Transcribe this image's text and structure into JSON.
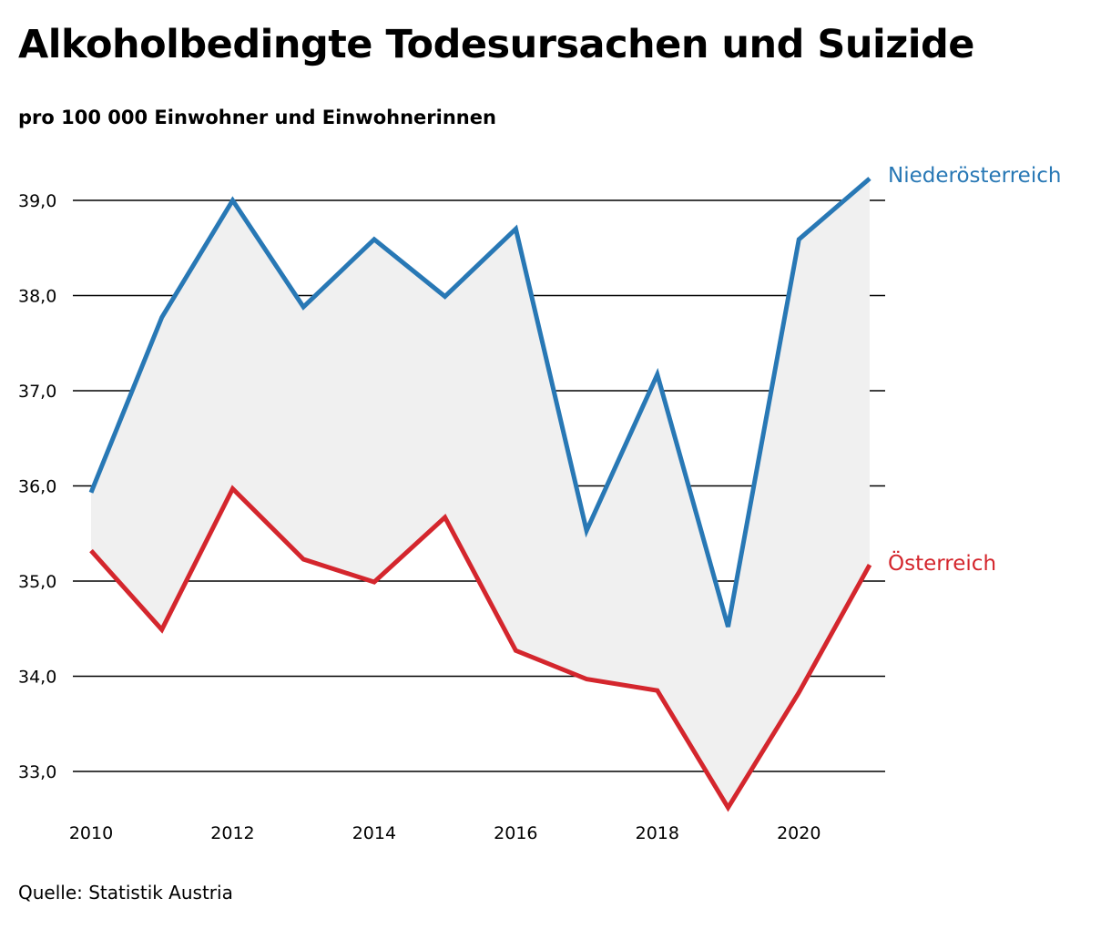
{
  "chart_data": {
    "type": "line",
    "title": "Alkoholbedingte Todesursachen und Suizide",
    "subtitle": "pro 100 000 Einwohner und Einwohnerinnen",
    "source": "Quelle: Statistik Austria",
    "x": [
      2010,
      2011,
      2012,
      2013,
      2014,
      2015,
      2016,
      2017,
      2018,
      2019,
      2020,
      2021
    ],
    "x_ticks": [
      2010,
      2012,
      2014,
      2016,
      2018,
      2020
    ],
    "x_tick_labels": [
      "2010",
      "2012",
      "2014",
      "2016",
      "2018",
      "2020"
    ],
    "y_ticks": [
      33,
      34,
      35,
      36,
      37,
      38,
      39
    ],
    "y_tick_labels": [
      "33,0",
      "34,0",
      "35,0",
      "36,0",
      "37,0",
      "38,0",
      "39,0"
    ],
    "ylim": [
      32.6,
      39.3
    ],
    "grid": true,
    "area_between_series": true,
    "area_color": "#f0f0f0",
    "series": [
      {
        "name": "Niederösterreich",
        "color": "#2878b5",
        "values": [
          35.93,
          37.77,
          39.0,
          37.88,
          38.59,
          37.99,
          38.7,
          35.53,
          37.17,
          34.52,
          38.59,
          39.23
        ]
      },
      {
        "name": "Österreich",
        "color": "#d4262d",
        "values": [
          35.32,
          34.49,
          35.97,
          35.23,
          34.99,
          35.67,
          34.27,
          33.97,
          33.85,
          32.62,
          33.83,
          35.17
        ]
      }
    ]
  }
}
